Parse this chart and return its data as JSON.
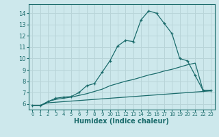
{
  "title": "",
  "xlabel": "Humidex (Indice chaleur)",
  "bg_color": "#cde8ec",
  "grid_color": "#b8d4d8",
  "line_color": "#1a6b6b",
  "xlim": [
    -0.5,
    23.5
  ],
  "ylim": [
    5.5,
    14.8
  ],
  "xticks": [
    0,
    1,
    2,
    3,
    4,
    5,
    6,
    7,
    8,
    9,
    10,
    11,
    12,
    13,
    14,
    15,
    16,
    17,
    18,
    19,
    20,
    21,
    22,
    23
  ],
  "yticks": [
    6,
    7,
    8,
    9,
    10,
    11,
    12,
    13,
    14
  ],
  "main_x": [
    0,
    1,
    2,
    3,
    4,
    5,
    6,
    7,
    8,
    9,
    10,
    11,
    12,
    13,
    14,
    15,
    16,
    17,
    18,
    19,
    20,
    21,
    22,
    23
  ],
  "main_y": [
    5.85,
    5.85,
    6.2,
    6.5,
    6.6,
    6.65,
    7.0,
    7.6,
    7.8,
    8.8,
    9.8,
    11.1,
    11.6,
    11.5,
    13.4,
    14.2,
    14.0,
    13.1,
    12.2,
    10.0,
    9.8,
    8.5,
    7.2,
    7.2
  ],
  "line2_x": [
    0,
    1,
    2,
    3,
    4,
    5,
    6,
    7,
    8,
    9,
    10,
    11,
    12,
    13,
    14,
    15,
    16,
    17,
    18,
    19,
    20,
    21,
    22,
    23
  ],
  "line2_y": [
    5.85,
    5.85,
    6.2,
    6.4,
    6.5,
    6.6,
    6.75,
    6.9,
    7.1,
    7.3,
    7.6,
    7.8,
    8.0,
    8.15,
    8.35,
    8.55,
    8.7,
    8.9,
    9.05,
    9.25,
    9.45,
    9.6,
    7.2,
    7.2
  ],
  "line3_x": [
    0,
    1,
    2,
    23
  ],
  "line3_y": [
    5.85,
    5.85,
    6.1,
    7.15
  ]
}
